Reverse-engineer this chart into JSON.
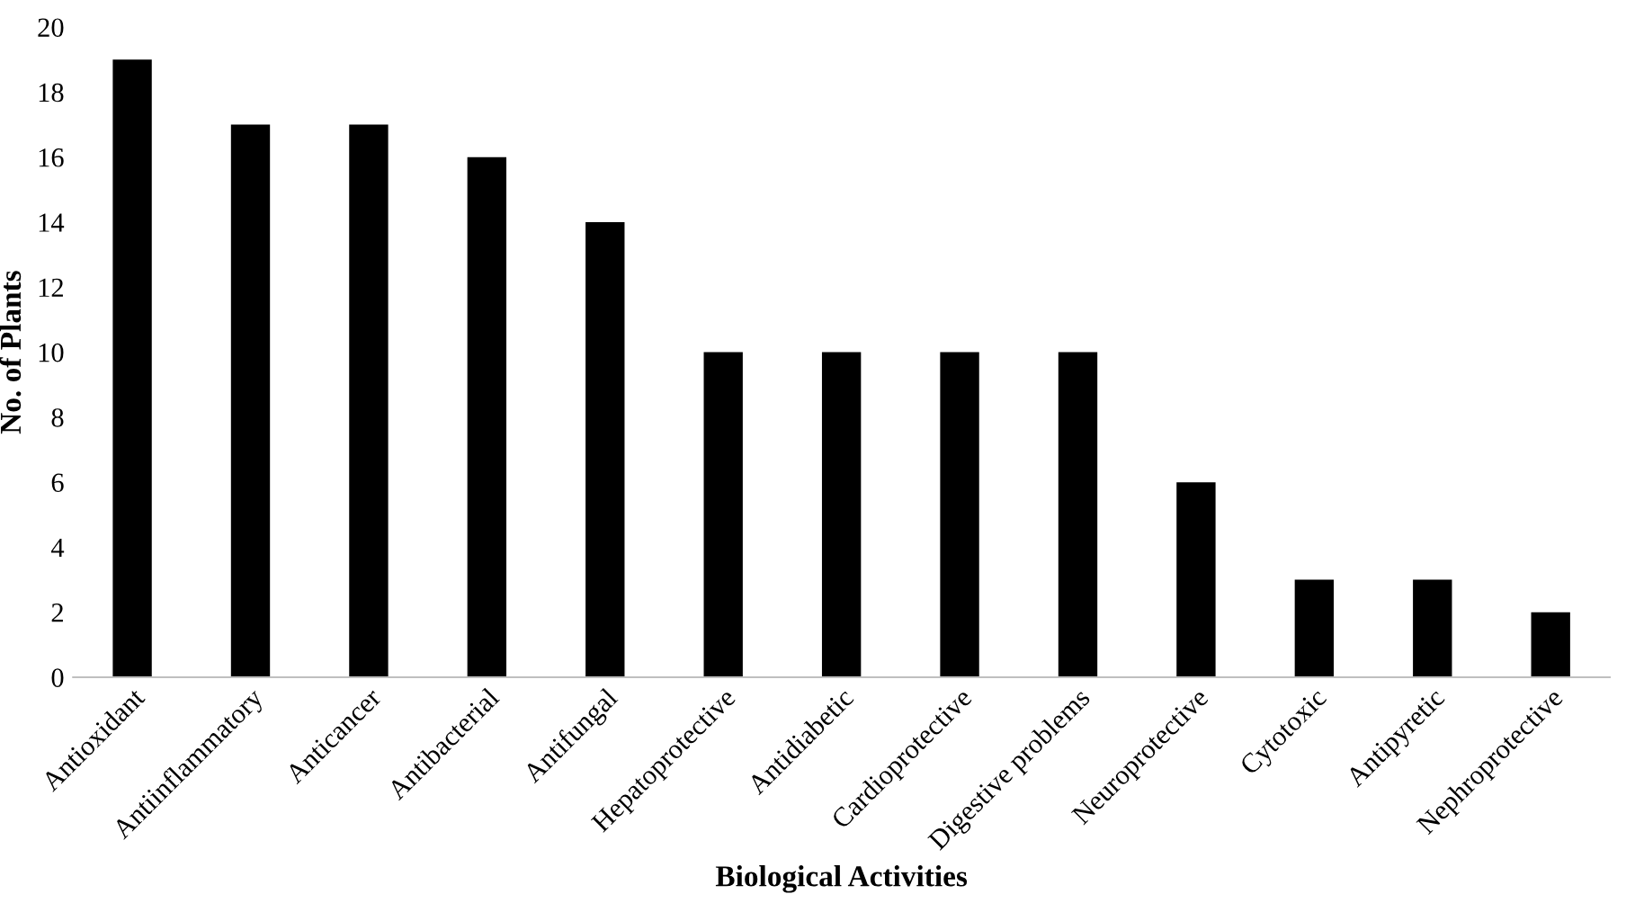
{
  "chart_data": {
    "type": "bar",
    "xlabel": "Biological Activities",
    "ylabel": "No. of Plants",
    "categories": [
      "Antioxidant",
      "Antiinflammatory",
      "Anticancer",
      "Antibacterial",
      "Antifungal",
      "Hepatoprotective",
      "Antidiabetic",
      "Cardioprotective",
      "Digestive problems",
      "Neuroprotective",
      "Cytotoxic",
      "Antipyretic",
      "Nephroprotective"
    ],
    "values": [
      19,
      17,
      17,
      16,
      14,
      10,
      10,
      10,
      10,
      6,
      3,
      3,
      2
    ],
    "color": "#000000",
    "ylim": [
      0,
      20
    ],
    "yticks": [
      0,
      2,
      4,
      6,
      8,
      10,
      12,
      14,
      16,
      18,
      20
    ],
    "grid": false,
    "legend": false
  }
}
